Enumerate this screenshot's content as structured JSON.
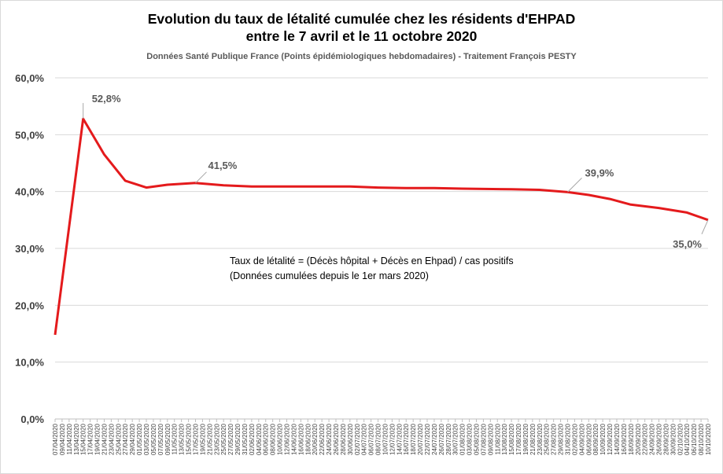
{
  "chart_data": {
    "type": "line",
    "title": "Evolution du taux de létalité cumulée chez les résidents d'EHPAD",
    "title_line2": "entre le 7 avril et le 11 octobre 2020",
    "subtitle": "Données Santé Publique France (Points épidémiologiques hebdomadaires)  - Traitement François PESTY",
    "annotation_lines": [
      "Taux de létalité = (Décès hôpital + Décès en Ehpad) / cas positifs",
      "(Données cumulées depuis le 1er mars 2020)"
    ],
    "ylim": [
      0,
      60
    ],
    "y_ticks": [
      "0,0%",
      "10,0%",
      "20,0%",
      "30,0%",
      "40,0%",
      "50,0%",
      "60,0%"
    ],
    "grid": true,
    "line_color": "#e41a1c",
    "x": [
      "07/04/2020",
      "09/04/2020",
      "11/04/2020",
      "13/04/2020",
      "15/04/2020",
      "17/04/2020",
      "19/04/2020",
      "21/04/2020",
      "23/04/2020",
      "25/04/2020",
      "27/04/2020",
      "29/04/2020",
      "01/05/2020",
      "03/05/2020",
      "05/05/2020",
      "07/05/2020",
      "09/05/2020",
      "11/05/2020",
      "13/05/2020",
      "15/05/2020",
      "17/05/2020",
      "19/05/2020",
      "21/05/2020",
      "23/05/2020",
      "25/05/2020",
      "27/05/2020",
      "29/05/2020",
      "31/05/2020",
      "02/06/2020",
      "04/06/2020",
      "06/06/2020",
      "08/06/2020",
      "10/06/2020",
      "12/06/2020",
      "14/06/2020",
      "16/06/2020",
      "18/06/2020",
      "20/06/2020",
      "22/06/2020",
      "24/06/2020",
      "26/06/2020",
      "28/06/2020",
      "30/06/2020",
      "02/07/2020",
      "04/07/2020",
      "06/07/2020",
      "08/07/2020",
      "10/07/2020",
      "12/07/2020",
      "14/07/2020",
      "16/07/2020",
      "18/07/2020",
      "20/07/2020",
      "22/07/2020",
      "24/07/2020",
      "26/07/2020",
      "28/07/2020",
      "30/07/2020",
      "01/08/2020",
      "03/08/2020",
      "05/08/2020",
      "07/08/2020",
      "09/08/2020",
      "11/08/2020",
      "13/08/2020",
      "15/08/2020",
      "17/08/2020",
      "19/08/2020",
      "21/08/2020",
      "23/08/2020",
      "25/08/2020",
      "27/08/2020",
      "29/08/2020",
      "31/08/2020",
      "02/09/2020",
      "04/09/2020",
      "06/09/2020",
      "08/09/2020",
      "10/09/2020",
      "12/09/2020",
      "14/09/2020",
      "16/09/2020",
      "18/09/2020",
      "20/09/2020",
      "22/09/2020",
      "24/09/2020",
      "26/09/2020",
      "28/09/2020",
      "30/09/2020",
      "02/10/2020",
      "04/10/2020",
      "06/10/2020",
      "08/10/2020",
      "10/10/2020"
    ],
    "points": [
      {
        "date": "07/04/2020",
        "value": 14.8
      },
      {
        "date": "15/04/2020",
        "value": 52.8
      },
      {
        "date": "21/04/2020",
        "value": 46.5
      },
      {
        "date": "27/04/2020",
        "value": 41.9
      },
      {
        "date": "03/05/2020",
        "value": 40.7
      },
      {
        "date": "09/05/2020",
        "value": 41.2
      },
      {
        "date": "17/05/2020",
        "value": 41.5
      },
      {
        "date": "25/05/2020",
        "value": 41.1
      },
      {
        "date": "02/06/2020",
        "value": 40.9
      },
      {
        "date": "16/06/2020",
        "value": 40.9
      },
      {
        "date": "30/06/2020",
        "value": 40.9
      },
      {
        "date": "08/07/2020",
        "value": 40.7
      },
      {
        "date": "16/07/2020",
        "value": 40.6
      },
      {
        "date": "24/07/2020",
        "value": 40.6
      },
      {
        "date": "01/08/2020",
        "value": 40.5
      },
      {
        "date": "15/08/2020",
        "value": 40.4
      },
      {
        "date": "23/08/2020",
        "value": 40.3
      },
      {
        "date": "31/08/2020",
        "value": 39.9
      },
      {
        "date": "06/09/2020",
        "value": 39.4
      },
      {
        "date": "12/09/2020",
        "value": 38.7
      },
      {
        "date": "18/09/2020",
        "value": 37.7
      },
      {
        "date": "26/09/2020",
        "value": 37.1
      },
      {
        "date": "04/10/2020",
        "value": 36.3
      },
      {
        "date": "10/10/2020",
        "value": 35.0
      }
    ],
    "data_labels": [
      {
        "date": "15/04/2020",
        "text": "52,8%"
      },
      {
        "date": "17/05/2020",
        "text": "41,5%"
      },
      {
        "date": "31/08/2020",
        "text": "39,9%"
      },
      {
        "date": "10/10/2020",
        "text": "35,0%"
      }
    ]
  }
}
